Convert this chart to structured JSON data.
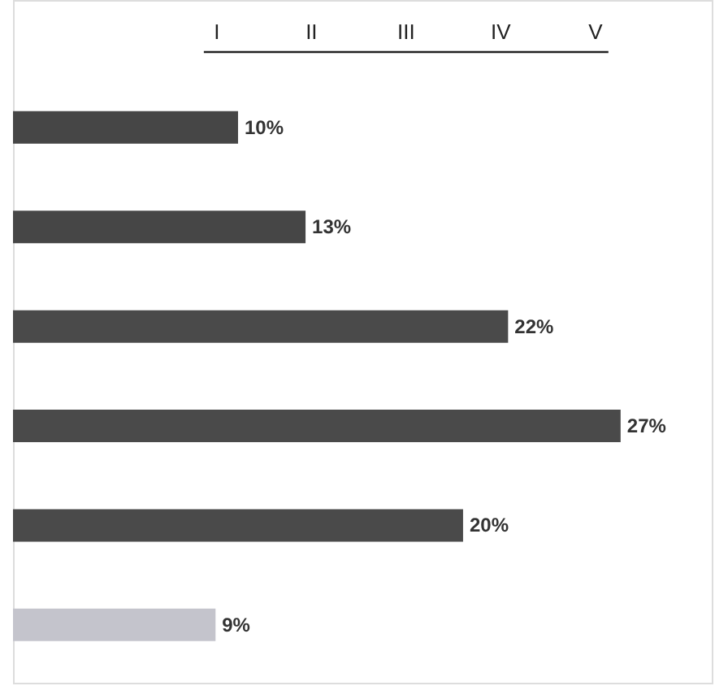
{
  "chart_data": {
    "type": "bar",
    "orientation": "horizontal",
    "categories": [
      null,
      null,
      null,
      null,
      null,
      null
    ],
    "values": [
      10,
      13,
      22,
      27,
      20,
      9
    ],
    "value_labels": [
      "10%",
      "13%",
      "22%",
      "27%",
      "20%",
      "9%"
    ],
    "colors": [
      "#464646",
      "#464646",
      "#4a4a4a",
      "#4a4a4a",
      "#4a4a4a",
      "#c4c4cc"
    ],
    "annotations": [
      "I",
      "II",
      "III",
      "IV",
      "V"
    ]
  }
}
